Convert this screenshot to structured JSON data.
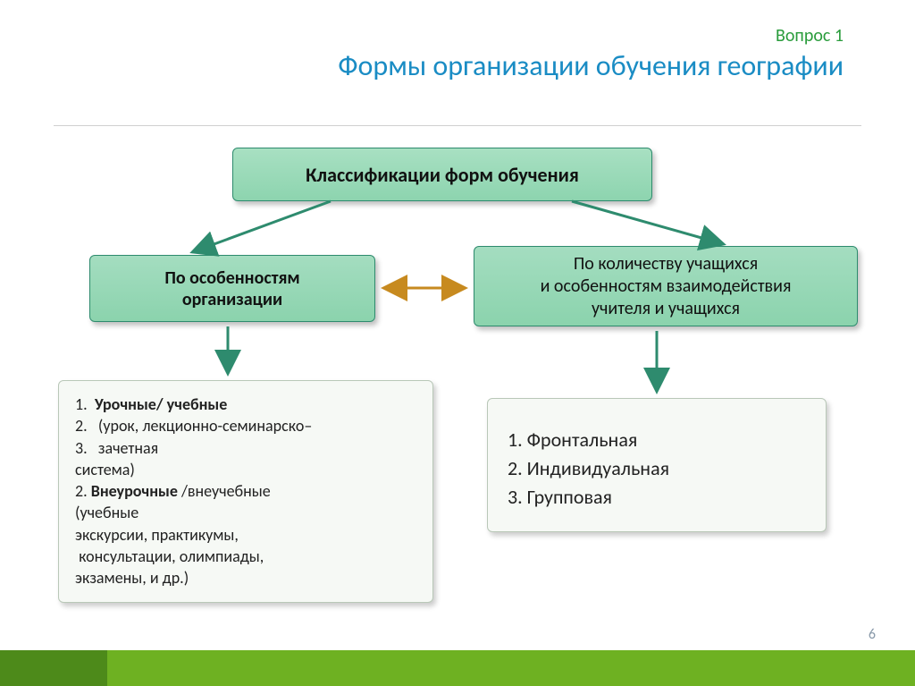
{
  "header": {
    "subtitle": "Вопрос 1",
    "title": "Формы организации обучения географии"
  },
  "nodes": {
    "root": {
      "label": "Классификации форм обучения"
    },
    "left": {
      "label": "По особенностям\nорганизации"
    },
    "right": {
      "label": "По количеству учащихся\nи особенностям взаимодействия\nучителя и учащихся"
    },
    "detail_left_html": "1.&nbsp;&nbsp;<b>Урочные/ учебные</b><br>2.&nbsp;&nbsp;&nbsp;(урок, лекционно-семинарско–<br>3.&nbsp;&nbsp;&nbsp;зачетная<br>система)<br>2. <b>Внеурочные</b> /внеучебные<br>(учебные<br>экскурсии, практикумы,<br>&nbsp;консультации, олимпиады,<br>экзамены, и др.)",
    "detail_right_items": [
      "Фронтальная",
      "Индивидуальная",
      "Групповая"
    ]
  },
  "arrows": {
    "stroke": "#2e8b6e",
    "stroke_mid": "#c78a1f",
    "width": 3
  },
  "colors": {
    "title": "#1a8cc4",
    "subtitle": "#2a9c3c",
    "box_border": "#2e8b6e",
    "box_grad_top": "#a8e0c2",
    "box_grad_bot": "#8dd4af",
    "detail_bg": "#f6f9f5",
    "footer": "#6eb122",
    "footer_accent": "#4d8a1a",
    "page_num": "#8a9aaa"
  },
  "page_number": "6"
}
